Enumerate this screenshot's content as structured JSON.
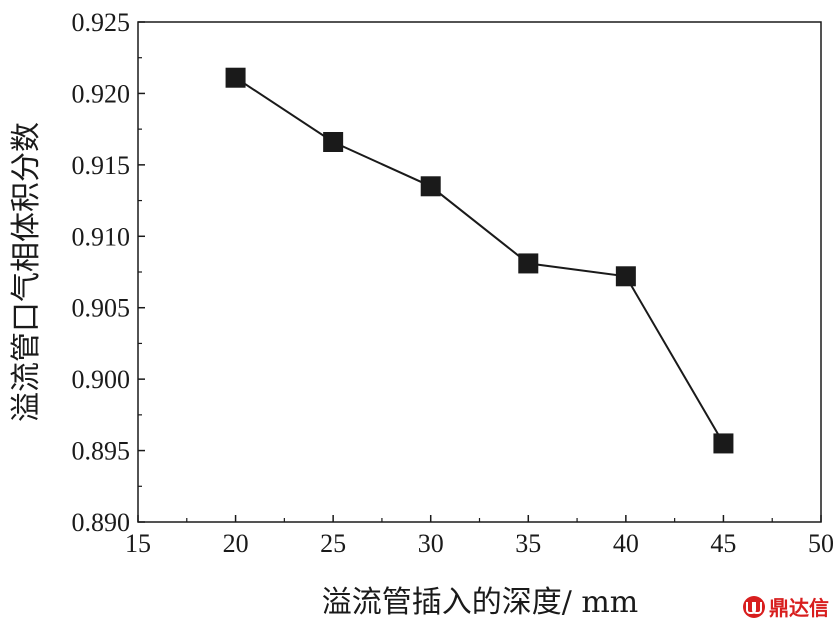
{
  "chart_data": {
    "type": "line",
    "x": [
      20,
      25,
      30,
      35,
      40,
      45
    ],
    "series": [
      {
        "values": [
          0.9211,
          0.9166,
          0.9135,
          0.9081,
          0.9072,
          0.8955
        ]
      }
    ],
    "xlim": [
      15,
      50
    ],
    "ylim": [
      0.89,
      0.925
    ],
    "xticks": [
      15,
      20,
      25,
      30,
      35,
      40,
      45,
      50
    ],
    "xtick_labels": [
      "15",
      "20",
      "25",
      "30",
      "35",
      "40",
      "45",
      "50"
    ],
    "yticks": [
      0.89,
      0.895,
      0.9,
      0.905,
      0.91,
      0.915,
      0.92,
      0.925
    ],
    "ytick_labels": [
      "0.890",
      "0.895",
      "0.900",
      "0.905",
      "0.910",
      "0.915",
      "0.920",
      "0.925"
    ],
    "xlabel": "溢流管插入的深度/ mm",
    "ylabel": "溢流管口气相体积分数",
    "marker": "square",
    "grid": false,
    "colors": {
      "line": "#1a1a1a",
      "marker": "#1a1a1a",
      "axis": "#1a1a1a"
    }
  },
  "watermark": {
    "text": "鼎达信",
    "color": "#d81e1e"
  }
}
